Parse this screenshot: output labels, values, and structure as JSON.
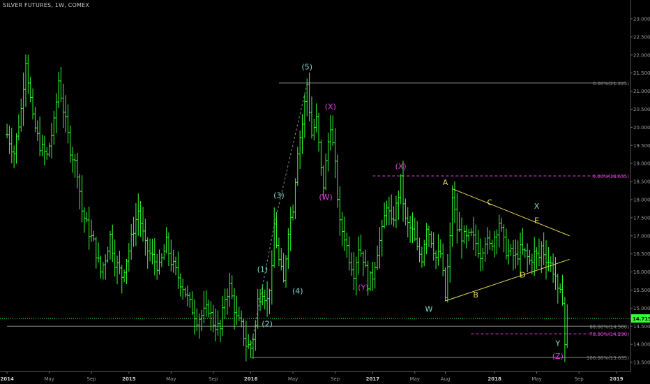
{
  "header": {
    "title": "SILVER FUTURES, 1W, COMEX"
  },
  "colors": {
    "background": "#000000",
    "candle": "#33ff33",
    "wave_main": "#7fd8c8",
    "wave_corrective": "#e040e0",
    "triangle": "#e6d95a",
    "fib_line": "#8a8a8a",
    "price_badge": "#33ff33"
  },
  "chart_data": {
    "type": "ohlc",
    "title": "SILVER FUTURES, 1W, COMEX",
    "xlabel": "",
    "ylabel": "",
    "ylim": [
      13.25,
      23.25
    ],
    "grid": false,
    "y_ticks": [
      "23.000",
      "22.500",
      "22.000",
      "21.500",
      "21.000",
      "20.500",
      "20.000",
      "19.500",
      "19.000",
      "18.500",
      "18.000",
      "17.500",
      "17.000",
      "16.500",
      "16.000",
      "15.500",
      "15.000",
      "14.500",
      "14.000",
      "13.500"
    ],
    "x_ticks": [
      {
        "label": "2014",
        "t": 0
      },
      {
        "label": "May",
        "t": 18
      },
      {
        "label": "Sep",
        "t": 36
      },
      {
        "label": "2015",
        "t": 52
      },
      {
        "label": "May",
        "t": 70
      },
      {
        "label": "Sep",
        "t": 88
      },
      {
        "label": "2016",
        "t": 104
      },
      {
        "label": "May",
        "t": 122
      },
      {
        "label": "Sep",
        "t": 140
      },
      {
        "label": "2017",
        "t": 156
      },
      {
        "label": "May",
        "t": 174
      },
      {
        "label": "Aug",
        "t": 187
      },
      {
        "label": "2018",
        "t": 208
      },
      {
        "label": "May",
        "t": 226
      },
      {
        "label": "Sep",
        "t": 244
      },
      {
        "label": "2019",
        "t": 260
      }
    ],
    "last_price": "14.715",
    "last_price_value": 14.715,
    "price_path": [
      [
        0,
        19.8
      ],
      [
        3,
        19.3
      ],
      [
        6,
        20.5
      ],
      [
        8,
        21.9
      ],
      [
        11,
        20.2
      ],
      [
        14,
        19.5
      ],
      [
        17,
        19.2
      ],
      [
        20,
        20.1
      ],
      [
        22,
        21.3
      ],
      [
        24,
        20.5
      ],
      [
        27,
        19.4
      ],
      [
        30,
        18.8
      ],
      [
        32,
        17.7
      ],
      [
        35,
        17.1
      ],
      [
        37,
        16.8
      ],
      [
        40,
        16.0
      ],
      [
        42,
        16.4
      ],
      [
        44,
        17.0
      ],
      [
        46,
        16.3
      ],
      [
        49,
        15.9
      ],
      [
        52,
        16.6
      ],
      [
        54,
        17.2
      ],
      [
        56,
        17.7
      ],
      [
        59,
        16.7
      ],
      [
        62,
        16.4
      ],
      [
        65,
        16.1
      ],
      [
        68,
        16.8
      ],
      [
        70,
        16.3
      ],
      [
        72,
        16.0
      ],
      [
        75,
        15.6
      ],
      [
        78,
        15.1
      ],
      [
        81,
        14.7
      ],
      [
        83,
        14.8
      ],
      [
        86,
        15.0
      ],
      [
        88,
        14.6
      ],
      [
        91,
        14.4
      ],
      [
        93,
        15.3
      ],
      [
        95,
        15.6
      ],
      [
        98,
        14.7
      ],
      [
        100,
        14.5
      ],
      [
        102,
        14.0
      ],
      [
        104,
        13.9
      ],
      [
        106,
        14.5
      ],
      [
        107,
        15.2
      ],
      [
        109,
        15.5
      ],
      [
        111,
        15.2
      ],
      [
        113,
        16.0
      ],
      [
        114,
        17.3
      ],
      [
        116,
        16.3
      ],
      [
        118,
        15.7
      ],
      [
        120,
        17.2
      ],
      [
        122,
        17.8
      ],
      [
        124,
        19.4
      ],
      [
        126,
        20.1
      ],
      [
        128,
        21.2
      ],
      [
        130,
        19.8
      ],
      [
        132,
        20.2
      ],
      [
        134,
        18.8
      ],
      [
        135,
        18.4
      ],
      [
        137,
        19.6
      ],
      [
        138,
        20.1
      ],
      [
        140,
        18.9
      ],
      [
        142,
        17.3
      ],
      [
        144,
        17.0
      ],
      [
        146,
        16.4
      ],
      [
        148,
        16.0
      ],
      [
        150,
        16.7
      ],
      [
        152,
        16.4
      ],
      [
        154,
        15.7
      ],
      [
        156,
        15.9
      ],
      [
        158,
        16.6
      ],
      [
        160,
        17.1
      ],
      [
        162,
        17.9
      ],
      [
        164,
        17.3
      ],
      [
        166,
        17.8
      ],
      [
        168,
        18.5
      ],
      [
        170,
        17.4
      ],
      [
        171,
        17.3
      ],
      [
        173,
        17.1
      ],
      [
        175,
        16.6
      ],
      [
        177,
        16.4
      ],
      [
        179,
        17.3
      ],
      [
        181,
        16.9
      ],
      [
        183,
        16.4
      ],
      [
        185,
        16.5
      ],
      [
        187,
        15.3
      ],
      [
        189,
        16.9
      ],
      [
        190,
        18.1
      ],
      [
        192,
        17.2
      ],
      [
        194,
        17.0
      ],
      [
        196,
        16.9
      ],
      [
        198,
        17.0
      ],
      [
        200,
        16.8
      ],
      [
        202,
        16.5
      ],
      [
        204,
        16.9
      ],
      [
        206,
        16.7
      ],
      [
        208,
        17.0
      ],
      [
        210,
        17.4
      ],
      [
        212,
        16.8
      ],
      [
        213,
        16.6
      ],
      [
        215,
        16.5
      ],
      [
        217,
        16.4
      ],
      [
        219,
        16.6
      ],
      [
        221,
        16.5
      ],
      [
        223,
        16.3
      ],
      [
        225,
        16.5
      ],
      [
        227,
        16.4
      ],
      [
        228,
        16.7
      ],
      [
        230,
        16.4
      ],
      [
        232,
        16.2
      ],
      [
        234,
        15.9
      ],
      [
        235,
        15.4
      ],
      [
        237,
        15.3
      ],
      [
        238,
        14.0
      ],
      [
        239,
        14.715
      ]
    ],
    "horizontal_levels": [
      {
        "label": "0.00%(21.225)",
        "value": 21.225,
        "style": "solid",
        "color": "#8a8a8a",
        "t0": 116,
        "t1": 264
      },
      {
        "label": "0.00%(18.655)",
        "value": 18.655,
        "style": "dashed",
        "color": "#e040e0",
        "t0": 156,
        "t1": 264
      },
      {
        "label": "88.60%(14.500)",
        "value": 14.5,
        "style": "solid",
        "color": "#8a8a8a",
        "t0": 0,
        "t1": 264
      },
      {
        "label": "78.60%(14.290)",
        "value": 14.29,
        "style": "dashed",
        "color": "#e040e0",
        "t0": 198,
        "t1": 264
      },
      {
        "label": "100.00%(13.635)",
        "value": 13.635,
        "style": "solid",
        "color": "#8a8a8a",
        "t0": 104,
        "t1": 264
      }
    ],
    "triangle_lines": [
      {
        "t0": 190,
        "v0": 18.3,
        "t1": 240,
        "v1": 17.0
      },
      {
        "t0": 187,
        "v0": 15.2,
        "t1": 240,
        "v1": 16.35
      }
    ],
    "wave_path": [
      [
        104,
        13.9
      ],
      [
        114,
        17.3
      ],
      [
        128,
        21.2
      ]
    ],
    "wave_labels": [
      {
        "text": "(1)",
        "t": 109,
        "v": 16.0,
        "color": "#7fd8c8"
      },
      {
        "text": "(2)",
        "t": 111,
        "v": 14.5,
        "color": "#7fd8c8"
      },
      {
        "text": "(3)",
        "t": 116,
        "v": 18.05,
        "color": "#7fd8c8"
      },
      {
        "text": "(4)",
        "t": 124,
        "v": 15.4,
        "color": "#7fd8c8"
      },
      {
        "text": "(5)",
        "t": 128,
        "v": 21.6,
        "color": "#7fd8c8"
      },
      {
        "text": "(X)",
        "t": 138,
        "v": 20.5,
        "color": "#e040e0"
      },
      {
        "text": "(W)",
        "t": 136,
        "v": 18.0,
        "color": "#e040e0"
      },
      {
        "text": "(X)",
        "t": 168,
        "v": 18.85,
        "color": "#e040e0"
      },
      {
        "text": "(Y)",
        "t": 152,
        "v": 15.5,
        "color": "#e040e0"
      },
      {
        "text": "W",
        "t": 180,
        "v": 14.9,
        "color": "#7fd8c8"
      },
      {
        "text": "A",
        "t": 187,
        "v": 18.4,
        "color": "#e6d95a"
      },
      {
        "text": "B",
        "t": 200,
        "v": 15.3,
        "color": "#e6d95a"
      },
      {
        "text": "C",
        "t": 206,
        "v": 17.85,
        "color": "#e6d95a"
      },
      {
        "text": "D",
        "t": 220,
        "v": 15.85,
        "color": "#e6d95a"
      },
      {
        "text": "X",
        "t": 226,
        "v": 17.75,
        "color": "#7fd8c8"
      },
      {
        "text": "E",
        "t": 226,
        "v": 17.35,
        "color": "#e6d95a"
      },
      {
        "text": "Y",
        "t": 235,
        "v": 13.95,
        "color": "#7fd8c8"
      },
      {
        "text": "(Z)",
        "t": 235,
        "v": 13.6,
        "color": "#e040e0"
      }
    ]
  }
}
